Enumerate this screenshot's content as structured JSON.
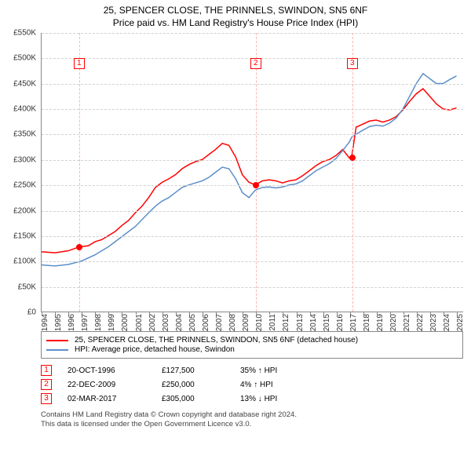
{
  "title_main": "25, SPENCER CLOSE, THE PRINNELS, SWINDON, SN5 6NF",
  "title_sub": "Price paid vs. HM Land Registry's House Price Index (HPI)",
  "chart": {
    "type": "line",
    "background_color": "#ffffff",
    "grid_color": "#d0d0d0",
    "axis_color": "#888888",
    "label_fontsize": 10,
    "xlim": [
      1994,
      2025.5
    ],
    "ylim": [
      0,
      550000
    ],
    "y_ticks": [
      {
        "v": 0,
        "label": "£0"
      },
      {
        "v": 50000,
        "label": "£50K"
      },
      {
        "v": 100000,
        "label": "£100K"
      },
      {
        "v": 150000,
        "label": "£150K"
      },
      {
        "v": 200000,
        "label": "£200K"
      },
      {
        "v": 250000,
        "label": "£250K"
      },
      {
        "v": 300000,
        "label": "£300K"
      },
      {
        "v": 350000,
        "label": "£350K"
      },
      {
        "v": 400000,
        "label": "£400K"
      },
      {
        "v": 450000,
        "label": "£450K"
      },
      {
        "v": 500000,
        "label": "£500K"
      },
      {
        "v": 550000,
        "label": "£550K"
      }
    ],
    "x_ticks": [
      1994,
      1995,
      1996,
      1997,
      1998,
      1999,
      2000,
      2001,
      2002,
      2003,
      2004,
      2005,
      2006,
      2007,
      2008,
      2009,
      2010,
      2011,
      2012,
      2013,
      2014,
      2015,
      2016,
      2017,
      2018,
      2019,
      2020,
      2021,
      2022,
      2023,
      2024,
      2025
    ],
    "series": [
      {
        "name": "property",
        "color": "#ff0000",
        "width": 1.5,
        "points": [
          [
            1994.0,
            118000
          ],
          [
            1995.0,
            116000
          ],
          [
            1996.0,
            120000
          ],
          [
            1996.8,
            127500
          ],
          [
            1997.5,
            130000
          ],
          [
            1998.0,
            138000
          ],
          [
            1998.5,
            142000
          ],
          [
            1999.0,
            150000
          ],
          [
            1999.5,
            158000
          ],
          [
            2000.0,
            170000
          ],
          [
            2000.5,
            180000
          ],
          [
            2001.0,
            195000
          ],
          [
            2001.5,
            208000
          ],
          [
            2002.0,
            225000
          ],
          [
            2002.5,
            245000
          ],
          [
            2003.0,
            255000
          ],
          [
            2003.5,
            262000
          ],
          [
            2004.0,
            270000
          ],
          [
            2004.5,
            282000
          ],
          [
            2005.0,
            290000
          ],
          [
            2005.5,
            296000
          ],
          [
            2006.0,
            300000
          ],
          [
            2006.5,
            310000
          ],
          [
            2007.0,
            320000
          ],
          [
            2007.5,
            332000
          ],
          [
            2008.0,
            328000
          ],
          [
            2008.5,
            305000
          ],
          [
            2009.0,
            270000
          ],
          [
            2009.5,
            255000
          ],
          [
            2009.97,
            250000
          ],
          [
            2010.5,
            258000
          ],
          [
            2011.0,
            260000
          ],
          [
            2011.5,
            258000
          ],
          [
            2012.0,
            254000
          ],
          [
            2012.5,
            258000
          ],
          [
            2013.0,
            260000
          ],
          [
            2013.5,
            268000
          ],
          [
            2014.0,
            278000
          ],
          [
            2014.5,
            288000
          ],
          [
            2015.0,
            296000
          ],
          [
            2015.5,
            300000
          ],
          [
            2016.0,
            308000
          ],
          [
            2016.5,
            320000
          ],
          [
            2017.0,
            303000
          ],
          [
            2017.17,
            305000
          ],
          [
            2017.5,
            364000
          ],
          [
            2018.0,
            370000
          ],
          [
            2018.5,
            376000
          ],
          [
            2019.0,
            378000
          ],
          [
            2019.5,
            374000
          ],
          [
            2020.0,
            378000
          ],
          [
            2020.5,
            385000
          ],
          [
            2021.0,
            398000
          ],
          [
            2021.5,
            415000
          ],
          [
            2022.0,
            430000
          ],
          [
            2022.5,
            440000
          ],
          [
            2023.0,
            425000
          ],
          [
            2023.5,
            410000
          ],
          [
            2024.0,
            400000
          ],
          [
            2024.5,
            398000
          ],
          [
            2025.0,
            402000
          ]
        ]
      },
      {
        "name": "hpi",
        "color": "#5b8fc8",
        "width": 1.5,
        "points": [
          [
            1994.0,
            92000
          ],
          [
            1995.0,
            90000
          ],
          [
            1996.0,
            93000
          ],
          [
            1997.0,
            100000
          ],
          [
            1998.0,
            112000
          ],
          [
            1999.0,
            128000
          ],
          [
            2000.0,
            148000
          ],
          [
            2001.0,
            168000
          ],
          [
            2002.0,
            195000
          ],
          [
            2002.5,
            208000
          ],
          [
            2003.0,
            218000
          ],
          [
            2003.5,
            225000
          ],
          [
            2004.0,
            235000
          ],
          [
            2004.5,
            245000
          ],
          [
            2005.0,
            250000
          ],
          [
            2005.5,
            254000
          ],
          [
            2006.0,
            258000
          ],
          [
            2006.5,
            265000
          ],
          [
            2007.0,
            275000
          ],
          [
            2007.5,
            285000
          ],
          [
            2008.0,
            282000
          ],
          [
            2008.5,
            262000
          ],
          [
            2009.0,
            235000
          ],
          [
            2009.5,
            225000
          ],
          [
            2009.97,
            240000
          ],
          [
            2010.5,
            245000
          ],
          [
            2011.0,
            246000
          ],
          [
            2011.5,
            244000
          ],
          [
            2012.0,
            246000
          ],
          [
            2012.5,
            250000
          ],
          [
            2013.0,
            252000
          ],
          [
            2013.5,
            258000
          ],
          [
            2014.0,
            268000
          ],
          [
            2014.5,
            278000
          ],
          [
            2015.0,
            285000
          ],
          [
            2015.5,
            292000
          ],
          [
            2016.0,
            302000
          ],
          [
            2016.5,
            318000
          ],
          [
            2017.0,
            335000
          ],
          [
            2017.17,
            344000
          ],
          [
            2017.5,
            350000
          ],
          [
            2018.0,
            358000
          ],
          [
            2018.5,
            365000
          ],
          [
            2019.0,
            368000
          ],
          [
            2019.5,
            366000
          ],
          [
            2020.0,
            372000
          ],
          [
            2020.5,
            382000
          ],
          [
            2021.0,
            400000
          ],
          [
            2021.5,
            425000
          ],
          [
            2022.0,
            450000
          ],
          [
            2022.5,
            470000
          ],
          [
            2023.0,
            460000
          ],
          [
            2023.5,
            450000
          ],
          [
            2024.0,
            450000
          ],
          [
            2024.5,
            458000
          ],
          [
            2025.0,
            465000
          ]
        ]
      }
    ],
    "sales": [
      {
        "n": "1",
        "x": 1996.8,
        "marker_y": 500000,
        "dot_y": 127500,
        "line_color": "#ffb3b3",
        "dot_color": "#ff0000"
      },
      {
        "n": "2",
        "x": 2009.97,
        "marker_y": 500000,
        "dot_y": 250000,
        "line_color": "#ffb3b3",
        "dot_color": "#ff0000"
      },
      {
        "n": "3",
        "x": 2017.17,
        "marker_y": 500000,
        "dot_y": 305000,
        "line_color": "#ffb3b3",
        "dot_color": "#ff0000"
      }
    ]
  },
  "legend": {
    "items": [
      {
        "color": "#ff0000",
        "label": "25, SPENCER CLOSE, THE PRINNELS, SWINDON, SN5 6NF (detached house)"
      },
      {
        "color": "#5b8fc8",
        "label": "HPI: Average price, detached house, Swindon"
      }
    ]
  },
  "sales_table": [
    {
      "n": "1",
      "date": "20-OCT-1996",
      "price": "£127,500",
      "delta": "35% ↑ HPI"
    },
    {
      "n": "2",
      "date": "22-DEC-2009",
      "price": "£250,000",
      "delta": "4% ↑ HPI"
    },
    {
      "n": "3",
      "date": "02-MAR-2017",
      "price": "£305,000",
      "delta": "13% ↓ HPI"
    }
  ],
  "footer_line1": "Contains HM Land Registry data © Crown copyright and database right 2024.",
  "footer_line2": "This data is licensed under the Open Government Licence v3.0."
}
